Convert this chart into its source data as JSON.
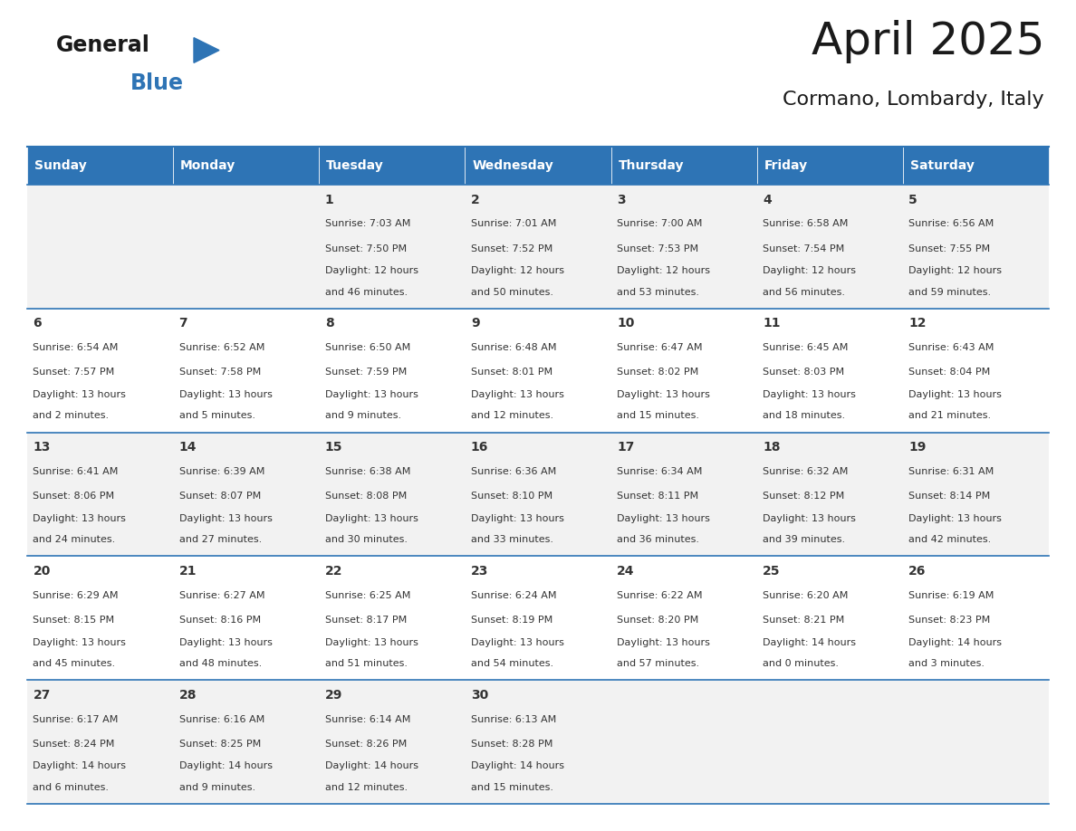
{
  "title": "April 2025",
  "subtitle": "Cormano, Lombardy, Italy",
  "days_of_week": [
    "Sunday",
    "Monday",
    "Tuesday",
    "Wednesday",
    "Thursday",
    "Friday",
    "Saturday"
  ],
  "header_bg": "#2E74B5",
  "header_text": "#FFFFFF",
  "row_bg_even": "#F2F2F2",
  "row_bg_odd": "#FFFFFF",
  "separator_color": "#2E74B5",
  "text_color": "#333333",
  "calendar_data": [
    [
      null,
      null,
      {
        "day": "1",
        "sunrise": "7:03 AM",
        "sunset": "7:50 PM",
        "daylight": "12 hours and 46 minutes."
      },
      {
        "day": "2",
        "sunrise": "7:01 AM",
        "sunset": "7:52 PM",
        "daylight": "12 hours and 50 minutes."
      },
      {
        "day": "3",
        "sunrise": "7:00 AM",
        "sunset": "7:53 PM",
        "daylight": "12 hours and 53 minutes."
      },
      {
        "day": "4",
        "sunrise": "6:58 AM",
        "sunset": "7:54 PM",
        "daylight": "12 hours and 56 minutes."
      },
      {
        "day": "5",
        "sunrise": "6:56 AM",
        "sunset": "7:55 PM",
        "daylight": "12 hours and 59 minutes."
      }
    ],
    [
      {
        "day": "6",
        "sunrise": "6:54 AM",
        "sunset": "7:57 PM",
        "daylight": "13 hours and 2 minutes."
      },
      {
        "day": "7",
        "sunrise": "6:52 AM",
        "sunset": "7:58 PM",
        "daylight": "13 hours and 5 minutes."
      },
      {
        "day": "8",
        "sunrise": "6:50 AM",
        "sunset": "7:59 PM",
        "daylight": "13 hours and 9 minutes."
      },
      {
        "day": "9",
        "sunrise": "6:48 AM",
        "sunset": "8:01 PM",
        "daylight": "13 hours and 12 minutes."
      },
      {
        "day": "10",
        "sunrise": "6:47 AM",
        "sunset": "8:02 PM",
        "daylight": "13 hours and 15 minutes."
      },
      {
        "day": "11",
        "sunrise": "6:45 AM",
        "sunset": "8:03 PM",
        "daylight": "13 hours and 18 minutes."
      },
      {
        "day": "12",
        "sunrise": "6:43 AM",
        "sunset": "8:04 PM",
        "daylight": "13 hours and 21 minutes."
      }
    ],
    [
      {
        "day": "13",
        "sunrise": "6:41 AM",
        "sunset": "8:06 PM",
        "daylight": "13 hours and 24 minutes."
      },
      {
        "day": "14",
        "sunrise": "6:39 AM",
        "sunset": "8:07 PM",
        "daylight": "13 hours and 27 minutes."
      },
      {
        "day": "15",
        "sunrise": "6:38 AM",
        "sunset": "8:08 PM",
        "daylight": "13 hours and 30 minutes."
      },
      {
        "day": "16",
        "sunrise": "6:36 AM",
        "sunset": "8:10 PM",
        "daylight": "13 hours and 33 minutes."
      },
      {
        "day": "17",
        "sunrise": "6:34 AM",
        "sunset": "8:11 PM",
        "daylight": "13 hours and 36 minutes."
      },
      {
        "day": "18",
        "sunrise": "6:32 AM",
        "sunset": "8:12 PM",
        "daylight": "13 hours and 39 minutes."
      },
      {
        "day": "19",
        "sunrise": "6:31 AM",
        "sunset": "8:14 PM",
        "daylight": "13 hours and 42 minutes."
      }
    ],
    [
      {
        "day": "20",
        "sunrise": "6:29 AM",
        "sunset": "8:15 PM",
        "daylight": "13 hours and 45 minutes."
      },
      {
        "day": "21",
        "sunrise": "6:27 AM",
        "sunset": "8:16 PM",
        "daylight": "13 hours and 48 minutes."
      },
      {
        "day": "22",
        "sunrise": "6:25 AM",
        "sunset": "8:17 PM",
        "daylight": "13 hours and 51 minutes."
      },
      {
        "day": "23",
        "sunrise": "6:24 AM",
        "sunset": "8:19 PM",
        "daylight": "13 hours and 54 minutes."
      },
      {
        "day": "24",
        "sunrise": "6:22 AM",
        "sunset": "8:20 PM",
        "daylight": "13 hours and 57 minutes."
      },
      {
        "day": "25",
        "sunrise": "6:20 AM",
        "sunset": "8:21 PM",
        "daylight": "14 hours and 0 minutes."
      },
      {
        "day": "26",
        "sunrise": "6:19 AM",
        "sunset": "8:23 PM",
        "daylight": "14 hours and 3 minutes."
      }
    ],
    [
      {
        "day": "27",
        "sunrise": "6:17 AM",
        "sunset": "8:24 PM",
        "daylight": "14 hours and 6 minutes."
      },
      {
        "day": "28",
        "sunrise": "6:16 AM",
        "sunset": "8:25 PM",
        "daylight": "14 hours and 9 minutes."
      },
      {
        "day": "29",
        "sunrise": "6:14 AM",
        "sunset": "8:26 PM",
        "daylight": "14 hours and 12 minutes."
      },
      {
        "day": "30",
        "sunrise": "6:13 AM",
        "sunset": "8:28 PM",
        "daylight": "14 hours and 15 minutes."
      },
      null,
      null,
      null
    ]
  ],
  "logo_triangle_color": "#2E74B5",
  "fig_width": 11.88,
  "fig_height": 9.18,
  "dpi": 100
}
